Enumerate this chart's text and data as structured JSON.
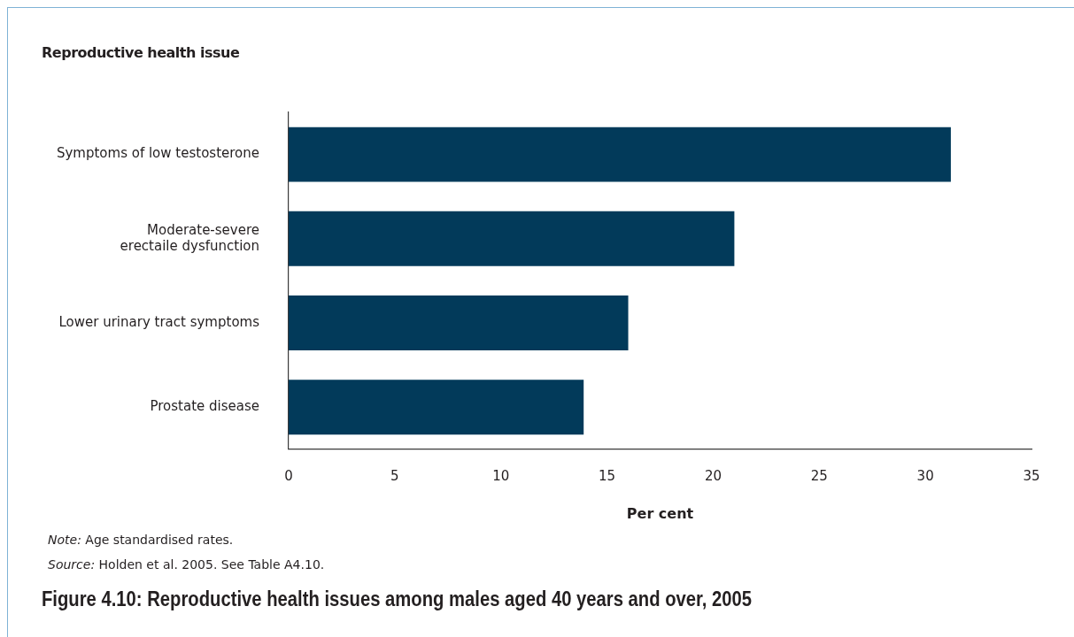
{
  "chart_data": {
    "type": "bar",
    "orientation": "horizontal",
    "title": "Figure 4.10: Reproductive health issues among males aged 40 years and over, 2005",
    "ylabel": "Reproductive health issue",
    "xlabel": "Per cent",
    "categories": [
      "Symptoms of low testosterone",
      "Moderate-severe erectaile dysfunction",
      "Lower urinary tract symptoms",
      "Prostate disease"
    ],
    "values": [
      31.2,
      21.0,
      16.0,
      13.9
    ],
    "color": "#023a5a",
    "xlim": [
      0,
      35
    ],
    "xticks": [
      0,
      5,
      10,
      15,
      20,
      25,
      30,
      35
    ],
    "grid": false,
    "legend": false,
    "annotations": [
      "Note: Age standardised rates.",
      "Source: Holden et al. 2005. See Table A4.10."
    ]
  }
}
